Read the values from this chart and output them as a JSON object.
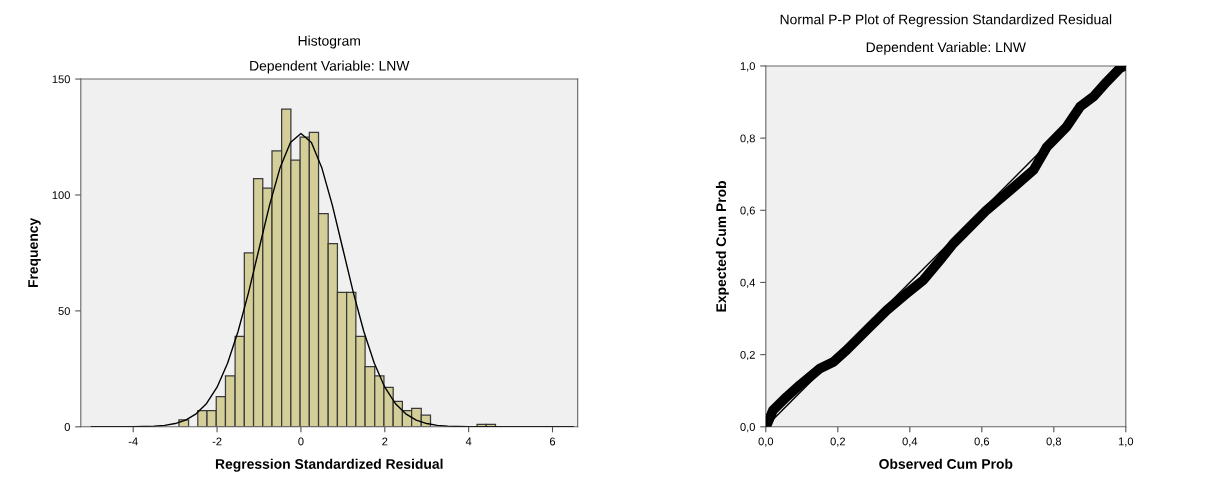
{
  "chart_data": [
    {
      "type": "histogram",
      "title": "Histogram",
      "subtitle": "Dependent Variable: LNW",
      "xlabel": "Regression Standardized Residual",
      "ylabel": "Frequency",
      "color": "#d4cf98",
      "bins": [
        -2.91,
        -2.68,
        -2.46,
        -2.24,
        -2.02,
        -1.8,
        -1.57,
        -1.35,
        -1.13,
        -0.91,
        -0.69,
        -0.46,
        -0.24,
        -0.02,
        0.2,
        0.42,
        0.65,
        0.87,
        1.09,
        1.31,
        1.53,
        1.76,
        1.98,
        2.2,
        2.42,
        2.64,
        2.87,
        3.09,
        3.31,
        3.53,
        3.75,
        3.98,
        4.2,
        4.42,
        4.64
      ],
      "values": [
        3,
        0,
        7,
        7,
        13,
        22,
        39,
        75,
        107,
        103,
        119,
        137,
        115,
        125,
        127,
        92,
        79,
        58,
        58,
        39,
        26,
        22,
        17,
        11,
        7,
        8,
        5,
        0,
        0,
        0,
        0,
        0,
        1,
        1
      ],
      "series": [
        {
          "type": "line",
          "color": "#000000",
          "x": [
            -5,
            -4,
            -3.5,
            -3.25,
            -3,
            -2.75,
            -2.5,
            -2.25,
            -2,
            -1.75,
            -1.5,
            -1.25,
            -1,
            -0.75,
            -0.5,
            -0.25,
            0,
            0.25,
            0.5,
            0.75,
            1,
            1.25,
            1.5,
            1.75,
            2,
            2.25,
            2.5,
            2.75,
            3,
            3.25,
            3.5,
            4,
            5,
            6.5
          ],
          "values": [
            0,
            0,
            0.3,
            0.6,
            1.4,
            2.9,
            5.6,
            10.1,
            17.1,
            27.4,
            41.1,
            57.9,
            76.7,
            95.5,
            111.6,
            122.6,
            126.5,
            122.6,
            111.6,
            95.5,
            76.7,
            57.9,
            41.1,
            27.4,
            17.1,
            10.1,
            5.6,
            2.9,
            1.4,
            0.6,
            0.3,
            0,
            0,
            0
          ]
        }
      ],
      "xlim": [
        -5.25,
        6.6
      ],
      "xticks": [
        -4,
        -2,
        0,
        2,
        4,
        6
      ],
      "ylim": [
        0,
        150
      ],
      "yticks": [
        0,
        50,
        100,
        150
      ],
      "grid": false,
      "legend": false
    },
    {
      "type": "line",
      "title": "Normal P-P Plot of Regression Standardized Residual",
      "subtitle": "Dependent Variable: LNW",
      "xlabel": "Observed Cum Prob",
      "ylabel": "Expected Cum Prob",
      "series": [
        {
          "type": "line",
          "color": "#000000",
          "x": [
            0,
            1
          ],
          "values": [
            0,
            1
          ]
        },
        {
          "type": "line",
          "color": "#000000",
          "x": [
            0.003,
            0.02,
            0.058,
            0.095,
            0.151,
            0.188,
            0.225,
            0.28,
            0.336,
            0.392,
            0.438,
            0.484,
            0.521,
            0.568,
            0.614,
            0.669,
            0.744,
            0.781,
            0.836,
            0.873,
            0.91,
            0.947,
            0.984,
            0.998
          ],
          "values": [
            0.005,
            0.046,
            0.083,
            0.116,
            0.162,
            0.18,
            0.213,
            0.268,
            0.323,
            0.37,
            0.407,
            0.462,
            0.508,
            0.555,
            0.601,
            0.647,
            0.712,
            0.776,
            0.832,
            0.887,
            0.915,
            0.956,
            0.994,
            1.0
          ]
        }
      ],
      "xlim": [
        0,
        1
      ],
      "xticks": [
        {
          "value": 0,
          "label": "0,0"
        },
        {
          "value": 0.2,
          "label": "0,2"
        },
        {
          "value": 0.4,
          "label": "0,4"
        },
        {
          "value": 0.6,
          "label": "0,6"
        },
        {
          "value": 0.8,
          "label": "0,8"
        },
        {
          "value": 1,
          "label": "1,0"
        }
      ],
      "ylim": [
        0,
        1
      ],
      "yticks": [
        {
          "value": 0,
          "label": "0,0"
        },
        {
          "value": 0.2,
          "label": "0,2"
        },
        {
          "value": 0.4,
          "label": "0,4"
        },
        {
          "value": 0.6,
          "label": "0,6"
        },
        {
          "value": 0.8,
          "label": "0,8"
        },
        {
          "value": 1,
          "label": "1,0"
        }
      ],
      "grid": false,
      "legend": false
    }
  ]
}
